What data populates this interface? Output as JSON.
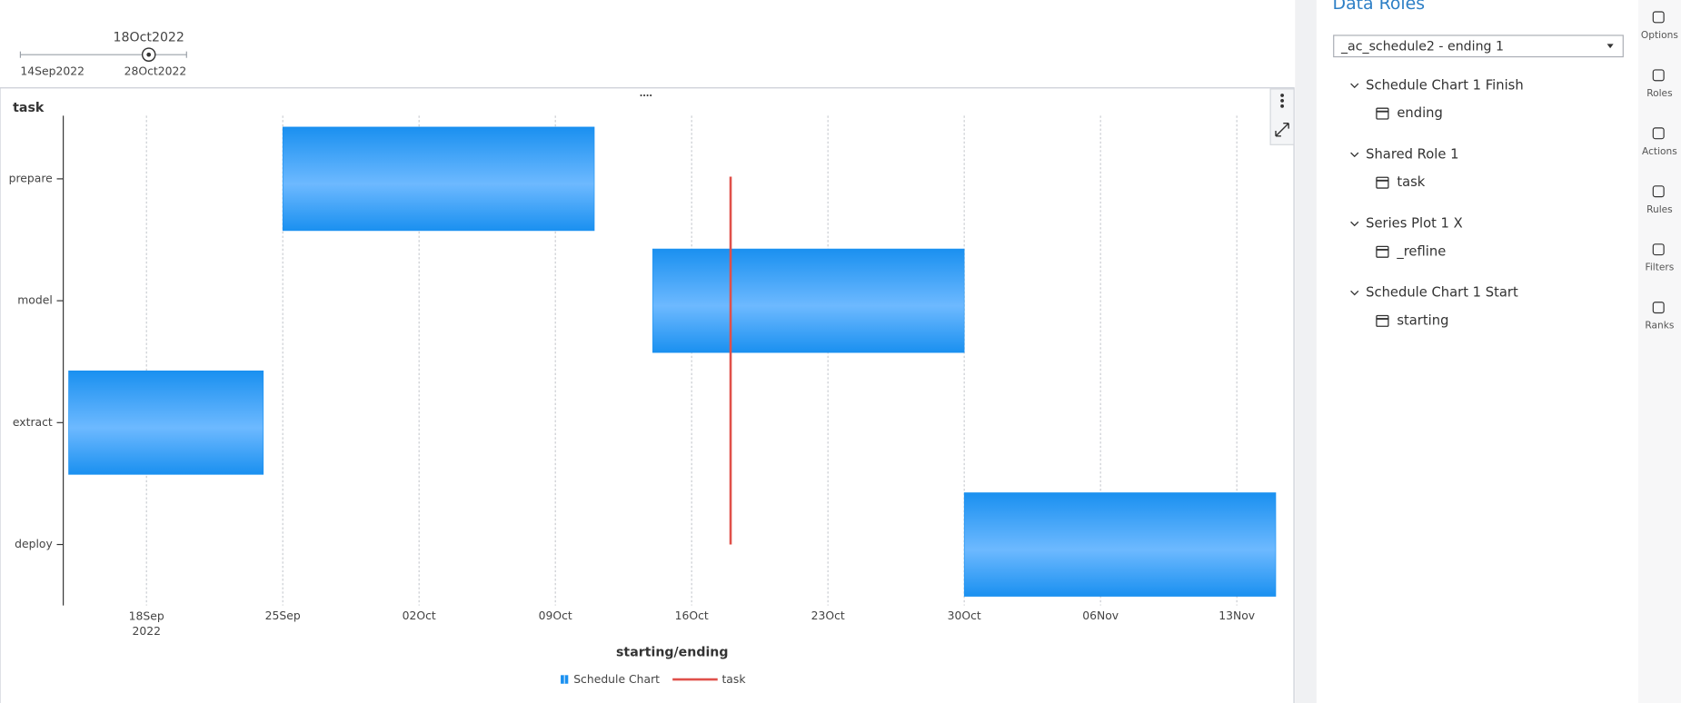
{
  "slider": {
    "current": "18Oct2022",
    "min_label": "14Sep2022",
    "max_label": "28Oct2022"
  },
  "chart_data": {
    "type": "gantt",
    "y_title": "task",
    "x_title": "starting/ending",
    "categories": [
      "prepare",
      "model",
      "extract",
      "deploy"
    ],
    "series": [
      {
        "name": "Schedule Chart",
        "type": "bar",
        "color": "#1a90f0",
        "starts": [
          "2022-09-25",
          "2022-10-14",
          "2022-09-14",
          "2022-10-30"
        ],
        "ends": [
          "2022-10-11",
          "2022-10-30",
          "2022-09-24",
          "2022-11-15"
        ]
      },
      {
        "name": "task",
        "type": "refline",
        "color": "#e0504a",
        "value": "2022-10-18"
      }
    ],
    "xlim": [
      "2022-09-14",
      "2022-11-15"
    ],
    "xticks": [
      {
        "value": "2022-09-18",
        "label": "18Sep 2022"
      },
      {
        "value": "2022-09-25",
        "label": "25Sep"
      },
      {
        "value": "2022-10-02",
        "label": "02Oct"
      },
      {
        "value": "2022-10-09",
        "label": "09Oct"
      },
      {
        "value": "2022-10-16",
        "label": "16Oct"
      },
      {
        "value": "2022-10-23",
        "label": "23Oct"
      },
      {
        "value": "2022-10-30",
        "label": "30Oct"
      },
      {
        "value": "2022-11-06",
        "label": "06Nov"
      },
      {
        "value": "2022-11-13",
        "label": "13Nov"
      }
    ],
    "grid": true
  },
  "data_roles": {
    "title": "Data Roles",
    "dropdown": "_ac_schedule2 - ending 1",
    "groups": [
      {
        "label": "Schedule Chart 1 Finish",
        "items": [
          "ending"
        ]
      },
      {
        "label": "Shared Role 1",
        "items": [
          "task"
        ]
      },
      {
        "label": "Series Plot 1 X",
        "items": [
          "_refline"
        ]
      },
      {
        "label": "Schedule Chart 1 Start",
        "items": [
          "starting"
        ]
      }
    ]
  },
  "sidebar": [
    "Options",
    "Roles",
    "Actions",
    "Rules",
    "Filters",
    "Ranks"
  ]
}
